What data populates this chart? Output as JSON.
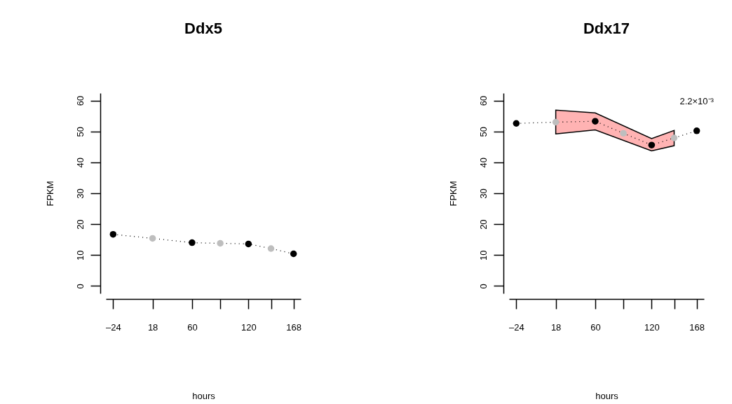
{
  "chart_data": [
    {
      "type": "line",
      "title": "Ddx5",
      "xlabel": "hours",
      "ylabel": "FPKM",
      "x": [
        -24,
        18,
        60,
        90,
        120,
        144,
        168
      ],
      "series": [
        {
          "color": "#000000",
          "values": [
            16.7,
            15.4,
            14.0,
            13.8,
            13.6,
            12.1,
            10.4
          ],
          "colors": [
            "#000000",
            "#bebebe",
            "#000000",
            "#bebebe",
            "#000000",
            "#bebebe",
            "#000000"
          ]
        }
      ],
      "xlim": [
        -31.7,
        175.7
      ],
      "ylim": [
        -2.4,
        62.4
      ],
      "xticks": [
        {
          "value": -24,
          "label": "–24"
        },
        18,
        60,
        {
          "value": 90,
          "label": null
        },
        120,
        {
          "value": 144,
          "label": null
        },
        168
      ],
      "yticks": [
        0,
        10,
        20,
        30,
        40,
        50,
        60
      ],
      "line_style": "dotted",
      "marker": "circle",
      "grid": false,
      "legend": false
    },
    {
      "type": "line",
      "title": "Ddx17",
      "xlabel": "hours",
      "ylabel": "FPKM",
      "x": [
        -24,
        18,
        60,
        90,
        120,
        144,
        168
      ],
      "series": [
        {
          "type": "area",
          "color": "#ffb3b3",
          "values": [
            null,
            null,
            null,
            null,
            null,
            null,
            null
          ],
          "lower": [
            null,
            49.2,
            50.5,
            null,
            43.7,
            45.4,
            null
          ],
          "upper": [
            null,
            56.9,
            56.0,
            null,
            47.7,
            50.3,
            null
          ]
        },
        {
          "color": "#000000",
          "values": [
            52.6,
            53.0,
            53.3,
            49.4,
            45.6,
            47.9,
            50.2
          ],
          "colors": [
            "#000000",
            "#bebebe",
            "#000000",
            "#bebebe",
            "#000000",
            "#bebebe",
            "#000000"
          ]
        }
      ],
      "xlim": [
        -31.7,
        175.7
      ],
      "ylim": [
        -2.4,
        62.4
      ],
      "xticks": [
        {
          "value": -24,
          "label": "–24"
        },
        18,
        60,
        {
          "value": 90,
          "label": null
        },
        120,
        {
          "value": 144,
          "label": null
        },
        168
      ],
      "yticks": [
        0,
        10,
        20,
        30,
        40,
        50,
        60
      ],
      "annotations": [
        {
          "text": "2.2×10⁻³",
          "x": 168,
          "y": 50.2
        }
      ],
      "line_style": "dotted",
      "marker": "circle",
      "grid": false,
      "legend": false
    }
  ]
}
